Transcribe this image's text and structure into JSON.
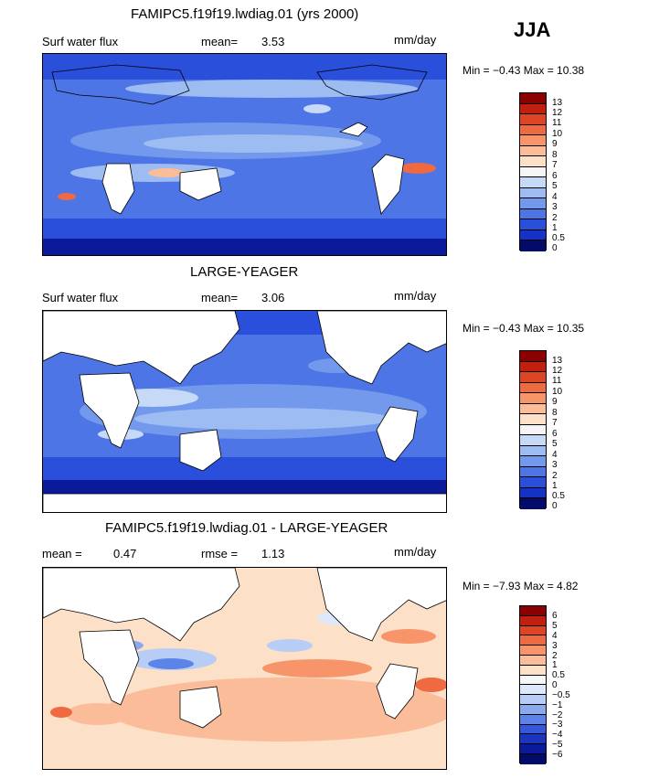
{
  "season": "JJA",
  "panels": [
    {
      "title": "FAMIPC5.f19f19.lwdiag.01 (yrs 2000)",
      "left_label": "Surf water flux",
      "stat_label": "mean=",
      "stat_value": "3.53",
      "units": "mm/day",
      "minmax": "Min =   −0.43  Max =   10.38",
      "colorbar_labels": [
        "13",
        "12",
        "11",
        "10",
        "9",
        "8",
        "7",
        "6",
        "5",
        "4",
        "3",
        "2",
        "1",
        "0.5",
        "0"
      ]
    },
    {
      "title": "LARGE-YEAGER",
      "left_label": "Surf water flux",
      "stat_label": "mean=",
      "stat_value": "3.06",
      "units": "mm/day",
      "minmax": "Min =   −0.43  Max =   10.35",
      "colorbar_labels": [
        "13",
        "12",
        "11",
        "10",
        "9",
        "8",
        "7",
        "6",
        "5",
        "4",
        "3",
        "2",
        "1",
        "0.5",
        "0"
      ]
    },
    {
      "title": "FAMIPC5.f19f19.lwdiag.01 - LARGE-YEAGER",
      "left_label": "mean =",
      "left_value": "0.47",
      "stat_label": "rmse =",
      "stat_value": "1.13",
      "units": "mm/day",
      "minmax": "Min =   −7.93  Max =    4.82",
      "colorbar_labels": [
        "6",
        "5",
        "4",
        "3",
        "2",
        "1",
        "0.5",
        "0",
        "−0.5",
        "−1",
        "−2",
        "−3",
        "−4",
        "−5",
        "−6"
      ]
    }
  ],
  "colors": {
    "abs_scale": [
      "#8b0000",
      "#c1200f",
      "#dd4525",
      "#ef6a40",
      "#f79469",
      "#fbbd99",
      "#fde0c8",
      "#f5f5f5",
      "#c6d9f7",
      "#9dbcf2",
      "#7399ec",
      "#4d75e5",
      "#2a4fdb",
      "#1632c4",
      "#0a1a9a",
      "#020b6a"
    ],
    "diff_scale": [
      "#8b0000",
      "#c1200f",
      "#dd4525",
      "#ef6a40",
      "#f79469",
      "#fbbd99",
      "#fde0c8",
      "#f7f7f7",
      "#dce8fb",
      "#b8cdf5",
      "#8aaaf0",
      "#5c84e8",
      "#3458dd",
      "#1a35c2",
      "#0a1a9a",
      "#020b6a"
    ],
    "land": "#ffffff",
    "coast": "#000000"
  }
}
